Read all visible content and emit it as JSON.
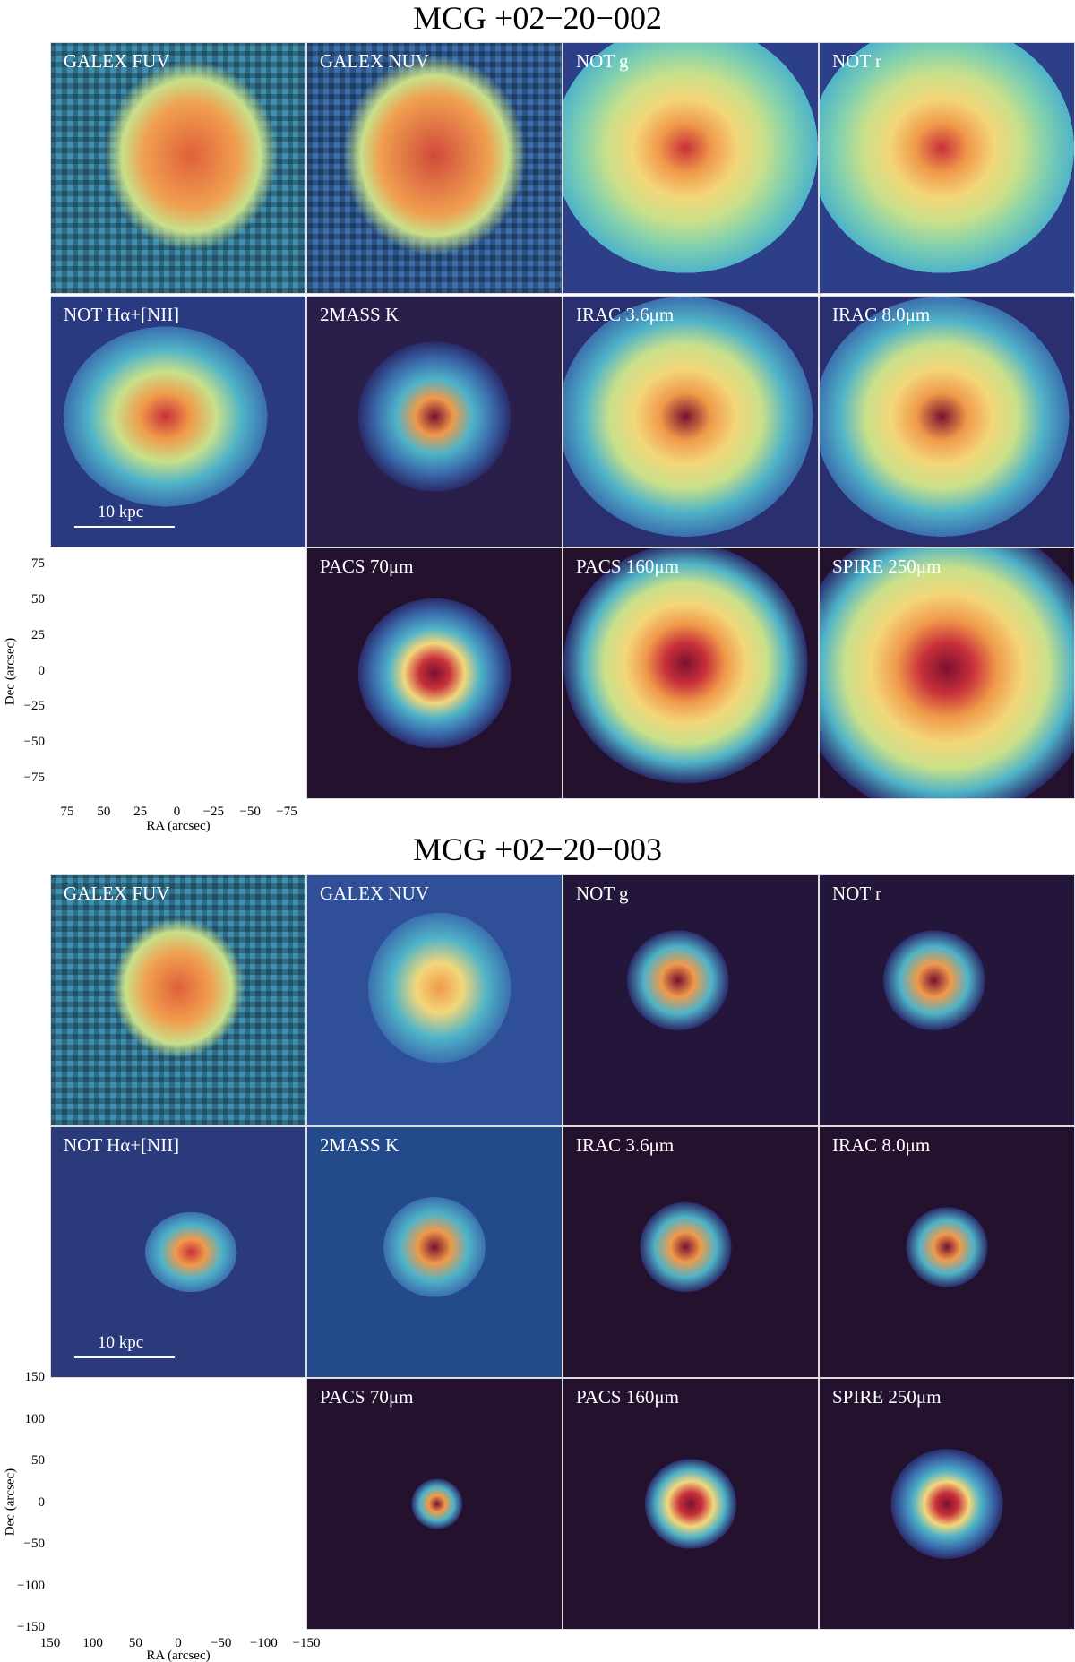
{
  "figures": [
    {
      "title": "MCG +02−20−002",
      "panels": [
        "GALEX FUV",
        "GALEX NUV",
        "NOT g",
        "NOT r",
        "NOT Hα+[NII]",
        "2MASS K",
        "IRAC 3.6μm",
        "IRAC 8.0μm",
        "PACS 70μm",
        "PACS 160μm",
        "SPIRE 250μm"
      ],
      "scale_bar": "10 kpc",
      "x_axis": {
        "label": "RA (arcsec)",
        "ticks": [
          "75",
          "50",
          "25",
          "0",
          "−25",
          "−50",
          "−75"
        ]
      },
      "y_axis": {
        "label": "Dec (arcsec)",
        "ticks": [
          "75",
          "50",
          "25",
          "0",
          "−25",
          "−50",
          "−75"
        ]
      }
    },
    {
      "title": "MCG +02−20−003",
      "panels": [
        "GALEX FUV",
        "GALEX NUV",
        "NOT g",
        "NOT r",
        "NOT Hα+[NII]",
        "2MASS K",
        "IRAC 3.6μm",
        "IRAC 8.0μm",
        "PACS 70μm",
        "PACS 160μm",
        "SPIRE 250μm"
      ],
      "scale_bar": "10 kpc",
      "x_axis": {
        "label": "RA (arcsec)",
        "ticks": [
          "150",
          "100",
          "50",
          "0",
          "−50",
          "−100",
          "−150"
        ]
      },
      "y_axis": {
        "label": "Dec (arcsec)",
        "ticks": [
          "150",
          "100",
          "50",
          "0",
          "−50",
          "−100",
          "−150"
        ]
      }
    }
  ]
}
